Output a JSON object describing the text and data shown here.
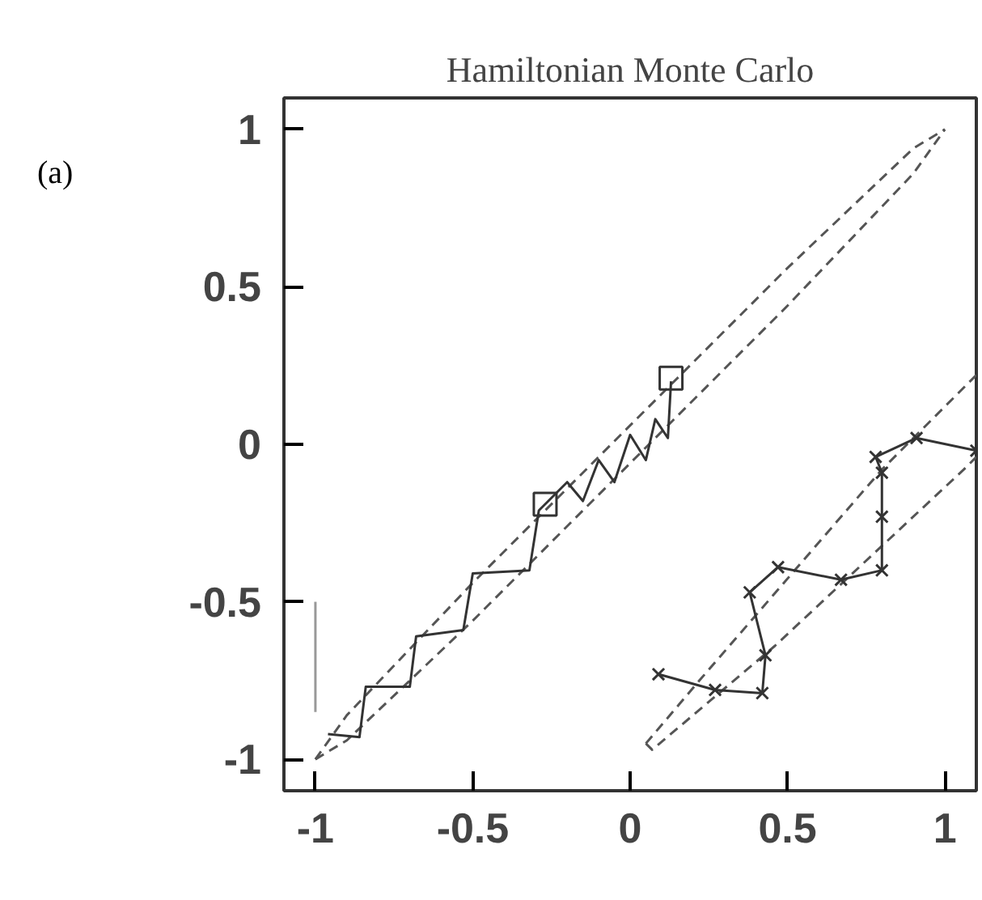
{
  "chart_data": {
    "type": "line",
    "title": "Hamiltonian Monte Carlo",
    "annotations": [
      "(a)"
    ],
    "xlim": [
      -1.1,
      1.1
    ],
    "ylim": [
      -1.1,
      1.1
    ],
    "xticks": [
      -1,
      -0.5,
      0,
      0.5,
      1
    ],
    "yticks": [
      -1,
      -0.5,
      0,
      0.5,
      1
    ],
    "grid": false,
    "series": [
      {
        "line_style": "dashed",
        "marker": "none",
        "color": "#555555",
        "x": [
          -1.0,
          -0.9,
          -0.5,
          0.0,
          0.5,
          0.9,
          1.0
        ],
        "values": [
          -1.0,
          -0.86,
          -0.44,
          0.06,
          0.56,
          0.94,
          1.0
        ]
      },
      {
        "line_style": "dashed",
        "marker": "none",
        "color": "#555555",
        "x": [
          -1.0,
          -0.9,
          -0.5,
          0.0,
          0.5,
          0.9,
          1.0
        ],
        "values": [
          -1.0,
          -0.94,
          -0.56,
          -0.06,
          0.44,
          0.86,
          1.0
        ]
      },
      {
        "line_style": "dashed",
        "marker": "none",
        "color": "#555555",
        "x": [
          0.05,
          0.22,
          0.8,
          1.1
        ],
        "values": [
          -0.95,
          -0.75,
          -0.08,
          0.22
        ]
      },
      {
        "line_style": "dashed",
        "marker": "none",
        "color": "#555555",
        "x": [
          0.05,
          0.07,
          0.46,
          1.06,
          1.1
        ],
        "values": [
          -0.95,
          -0.97,
          -0.64,
          -0.08,
          -0.04
        ]
      },
      {
        "line_style": "solid",
        "marker": "none",
        "color": "#333333",
        "x": [
          -0.96,
          -0.86,
          -0.84,
          -0.7,
          -0.68,
          -0.53,
          -0.5,
          -0.32,
          -0.29,
          -0.2,
          -0.15,
          -0.1,
          -0.05,
          0.0,
          0.05,
          0.08,
          0.12,
          0.13
        ],
        "values": [
          -0.92,
          -0.93,
          -0.77,
          -0.77,
          -0.61,
          -0.59,
          -0.41,
          -0.4,
          -0.21,
          -0.12,
          -0.18,
          -0.05,
          -0.12,
          0.03,
          -0.05,
          0.08,
          0.02,
          0.2
        ]
      },
      {
        "type": "scatter",
        "marker": "square",
        "color": "#333333",
        "x": [
          -0.27,
          0.13
        ],
        "values": [
          -0.19,
          0.21
        ]
      },
      {
        "line_style": "solid",
        "marker": "cross",
        "color": "#333333",
        "x": [
          0.09,
          0.27,
          0.42,
          0.43,
          0.38,
          0.47,
          0.67,
          0.8,
          0.8,
          0.8,
          0.78,
          0.91,
          1.1
        ],
        "values": [
          -0.73,
          -0.78,
          -0.79,
          -0.67,
          -0.47,
          -0.39,
          -0.43,
          -0.4,
          -0.23,
          -0.09,
          -0.04,
          0.02,
          -0.02
        ]
      },
      {
        "line_style": "solid",
        "marker": "none",
        "color": "#999999",
        "x": [
          -1.0,
          -1.0
        ],
        "values": [
          -0.5,
          -0.85
        ]
      }
    ]
  }
}
